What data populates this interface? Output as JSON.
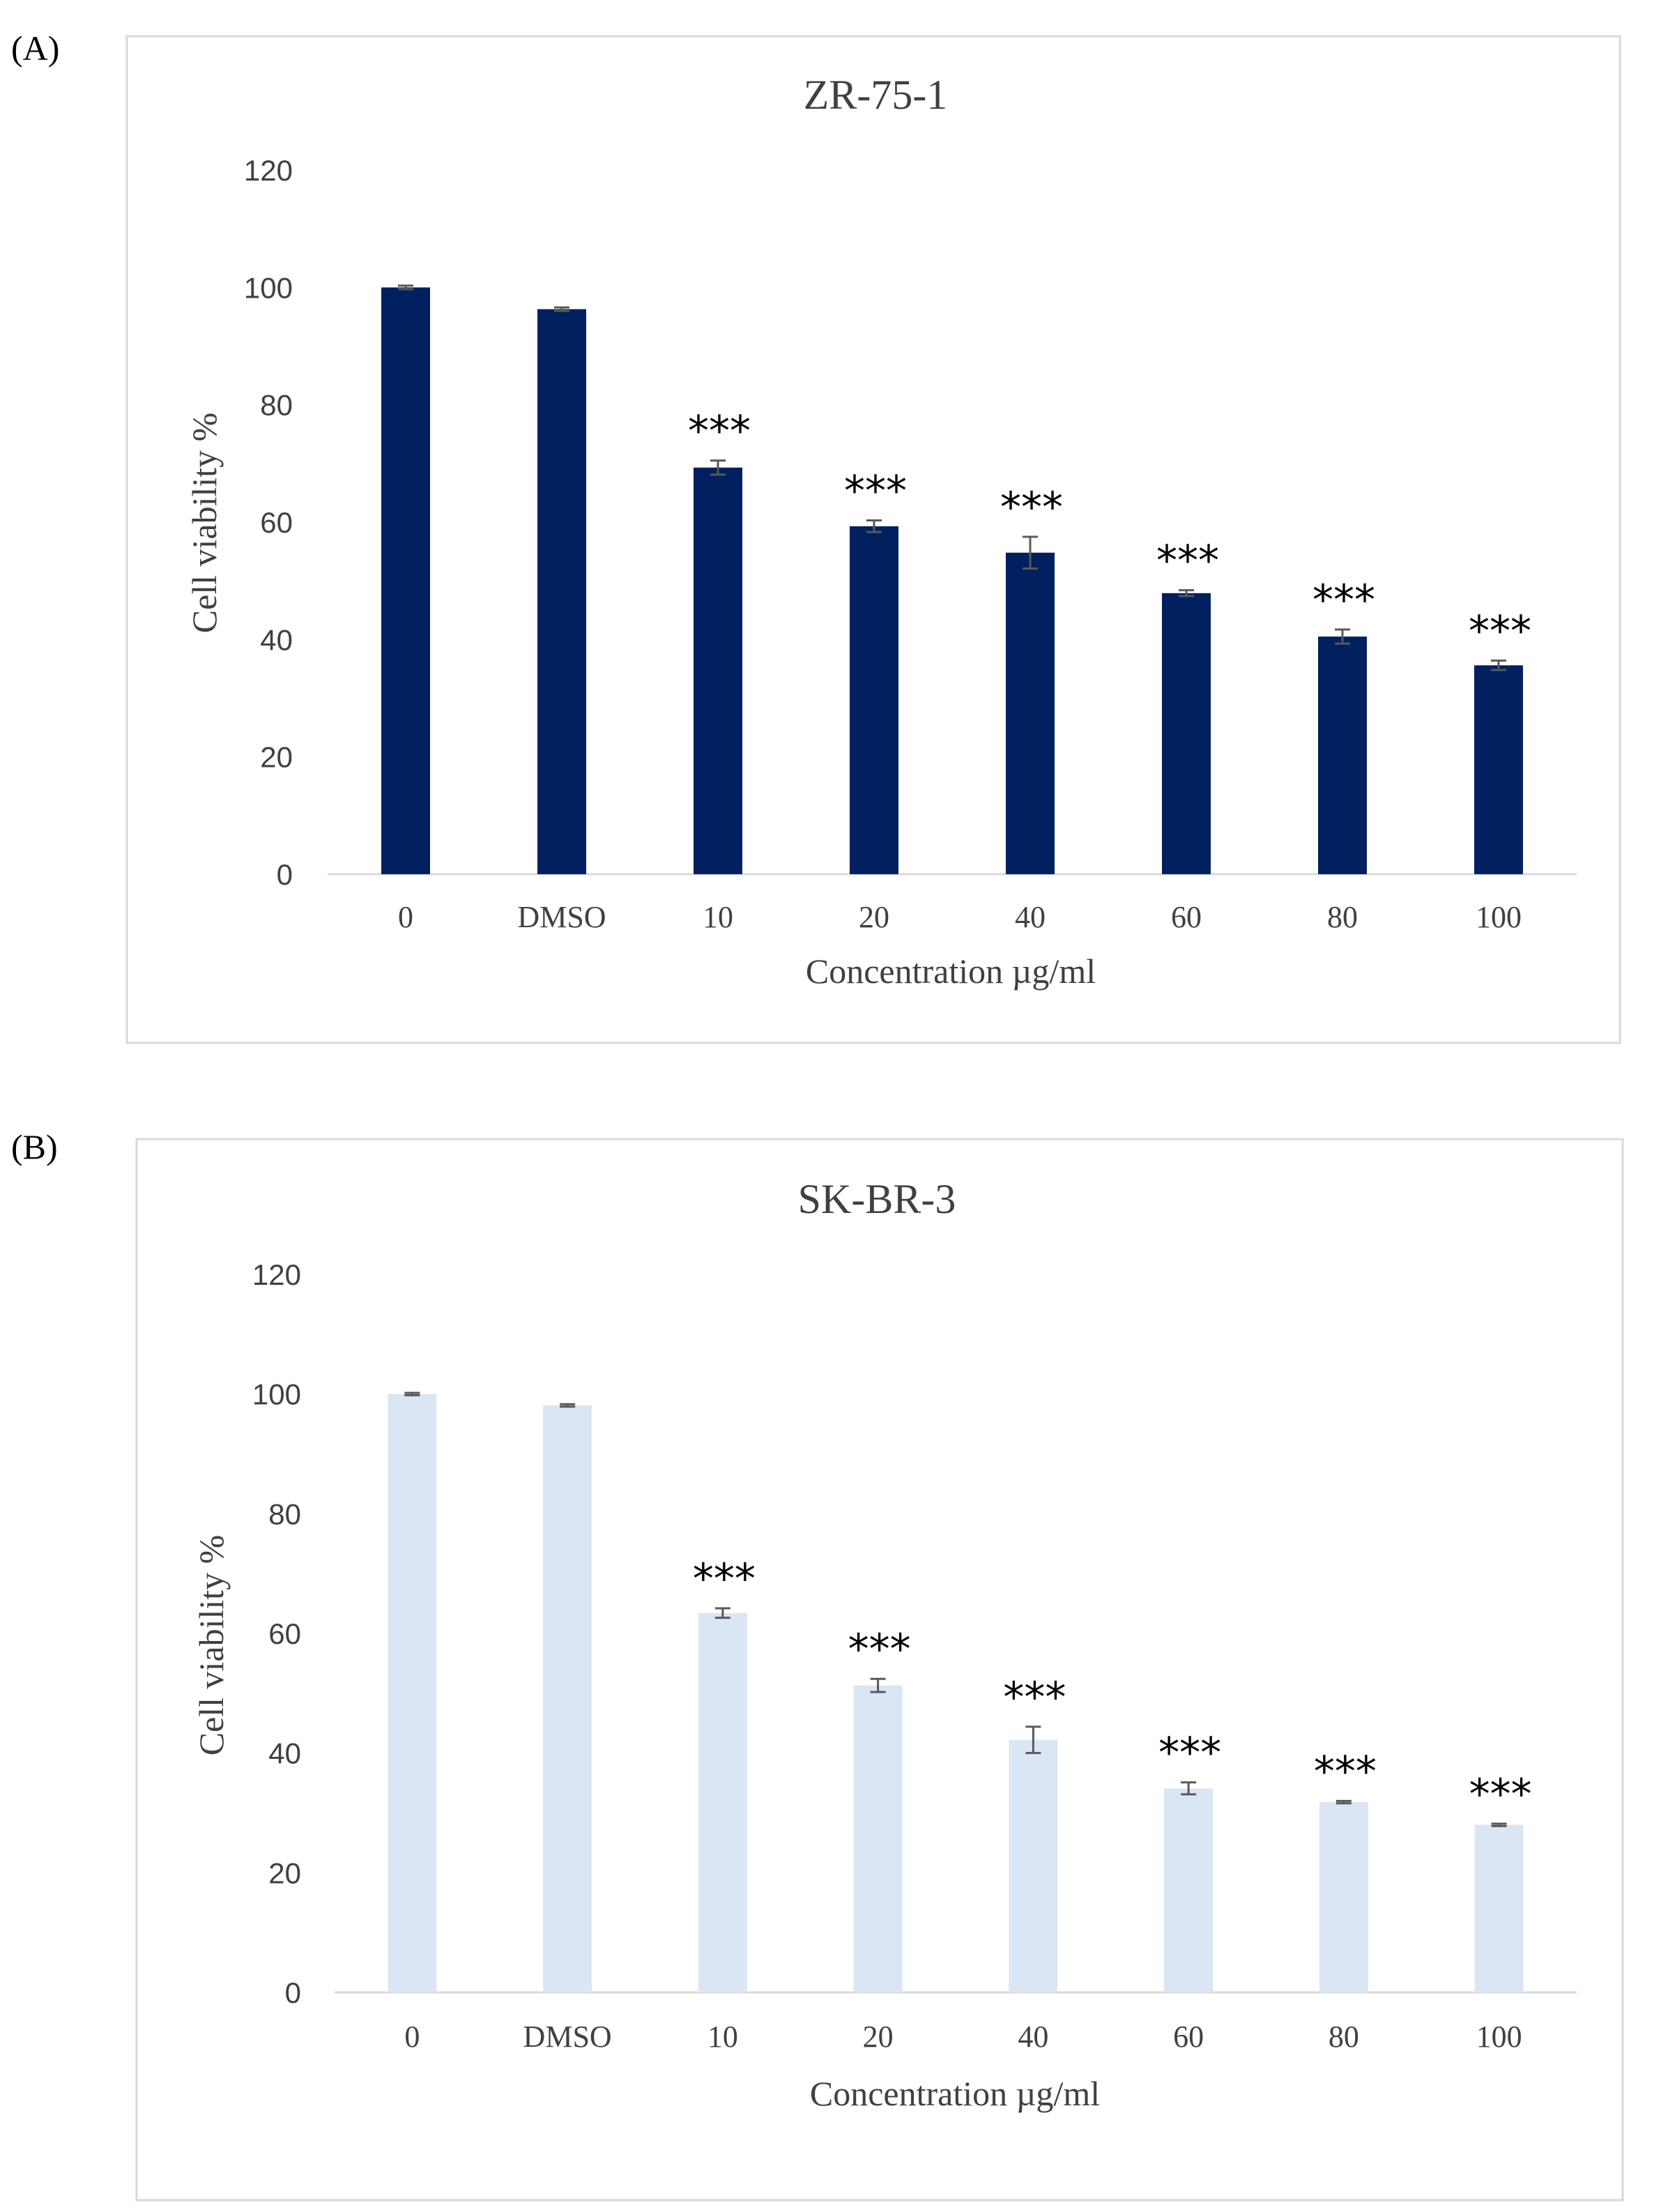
{
  "panels": {
    "a": {
      "label": "(A)"
    },
    "b": {
      "label": "(B)"
    }
  },
  "chart_data": [
    {
      "type": "bar",
      "title": "ZR-75-1",
      "xlabel": "Concentration µg/ml",
      "ylabel": "Cell viability %",
      "ylim": [
        0,
        120
      ],
      "yticks": [
        0,
        20,
        40,
        60,
        80,
        100,
        120
      ],
      "grid": false,
      "legend": "none",
      "bar_color": "#002060",
      "categories": [
        "0",
        "DMSO",
        "10",
        "20",
        "40",
        "60",
        "80",
        "100"
      ],
      "values": [
        100,
        96.3,
        69.3,
        59.3,
        54.8,
        47.9,
        40.5,
        35.6
      ],
      "errors": [
        0.3,
        0.3,
        1.2,
        1.0,
        2.7,
        0.5,
        1.2,
        0.8
      ],
      "annotations": [
        "",
        "",
        "***",
        "***",
        "***",
        "***",
        "***",
        "***"
      ]
    },
    {
      "type": "bar",
      "title": "SK-BR-3",
      "xlabel": "Concentration µg/ml",
      "ylabel": "Cell viability %",
      "ylim": [
        0,
        120
      ],
      "yticks": [
        0,
        20,
        40,
        60,
        80,
        100,
        120
      ],
      "grid": false,
      "legend": "none",
      "bar_color": "#dae6f4",
      "categories": [
        "0",
        "DMSO",
        "10",
        "20",
        "40",
        "60",
        "80",
        "100"
      ],
      "values": [
        100,
        98.1,
        63.4,
        51.3,
        42.2,
        34.1,
        31.8,
        28.0
      ],
      "errors": [
        0.2,
        0.2,
        0.8,
        1.1,
        2.2,
        1.0,
        0.2,
        0.2
      ],
      "annotations": [
        "",
        "",
        "***",
        "***",
        "***",
        "***",
        "***",
        "***"
      ]
    }
  ]
}
